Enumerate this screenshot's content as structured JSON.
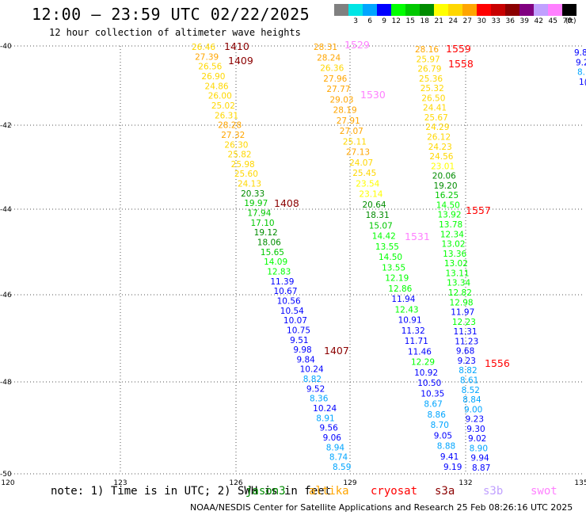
{
  "header": {
    "title": "12:00 — 23:59 UTC 02/22/2025",
    "subtitle": "12 hour collection of altimeter wave heights"
  },
  "color_scale": {
    "unit": "(ft)",
    "swatches": [
      {
        "label": "",
        "color": "#808080"
      },
      {
        "label": "3",
        "color": "#00e5e5"
      },
      {
        "label": "6",
        "color": "#00a5ff"
      },
      {
        "label": "9",
        "color": "#0000ff"
      },
      {
        "label": "12",
        "color": "#00ff00"
      },
      {
        "label": "15",
        "color": "#00c800"
      },
      {
        "label": "18",
        "color": "#008c00"
      },
      {
        "label": "21",
        "color": "#ffff00"
      },
      {
        "label": "24",
        "color": "#ffd700"
      },
      {
        "label": "27",
        "color": "#ffa500"
      },
      {
        "label": "30",
        "color": "#ff0000"
      },
      {
        "label": "33",
        "color": "#c80000"
      },
      {
        "label": "36",
        "color": "#8b0000"
      },
      {
        "label": "39",
        "color": "#800080"
      },
      {
        "label": "42",
        "color": "#c0a0ff"
      },
      {
        "label": "45",
        "color": "#ff80ff"
      },
      {
        "label": "70",
        "color": "#000000"
      }
    ]
  },
  "map": {
    "lat_ticks": [
      "-40",
      "-42",
      "-44",
      "-46",
      "-48",
      "-50"
    ],
    "lon_ticks": [
      "120",
      "123",
      "126",
      "129",
      "132",
      "135"
    ],
    "tracks": [
      {
        "labels": [
          {
            "text": "1410",
            "color": "#8b0000"
          },
          {
            "text": "1409",
            "color": "#8b0000"
          },
          {
            "text": "1408",
            "color": "#8b0000"
          },
          {
            "text": "1407",
            "color": "#8b0000"
          }
        ],
        "points": [
          {
            "text": "26.46",
            "color": "#ffd700"
          },
          {
            "text": "27.39",
            "color": "#ffa500"
          },
          {
            "text": "26.56",
            "color": "#ffd700"
          },
          {
            "text": "26.90",
            "color": "#ffd700"
          },
          {
            "text": "24.86",
            "color": "#ffd700"
          },
          {
            "text": "26.00",
            "color": "#ffd700"
          },
          {
            "text": "25.02",
            "color": "#ffd700"
          },
          {
            "text": "26.31",
            "color": "#ffd700"
          },
          {
            "text": "28.28",
            "color": "#ffa500"
          },
          {
            "text": "27.32",
            "color": "#ffa500"
          },
          {
            "text": "26.30",
            "color": "#ffd700"
          },
          {
            "text": "25.82",
            "color": "#ffd700"
          },
          {
            "text": "25.98",
            "color": "#ffd700"
          },
          {
            "text": "25.60",
            "color": "#ffd700"
          },
          {
            "text": "24.13",
            "color": "#ffd700"
          },
          {
            "text": "20.33",
            "color": "#008c00"
          },
          {
            "text": "19.97",
            "color": "#00c800"
          },
          {
            "text": "17.94",
            "color": "#00c800"
          },
          {
            "text": "17.10",
            "color": "#00c800"
          },
          {
            "text": "19.12",
            "color": "#008c00"
          },
          {
            "text": "18.06",
            "color": "#008c00"
          },
          {
            "text": "15.65",
            "color": "#00c800"
          },
          {
            "text": "14.09",
            "color": "#00ff00"
          },
          {
            "text": "12.83",
            "color": "#00ff00"
          },
          {
            "text": "11.39",
            "color": "#0000ff"
          },
          {
            "text": "10.67",
            "color": "#0000ff"
          },
          {
            "text": "10.56",
            "color": "#0000ff"
          },
          {
            "text": "10.54",
            "color": "#0000ff"
          },
          {
            "text": "10.07",
            "color": "#0000ff"
          },
          {
            "text": "10.75",
            "color": "#0000ff"
          },
          {
            "text": "9.51",
            "color": "#0000ff"
          },
          {
            "text": "9.98",
            "color": "#0000ff"
          },
          {
            "text": "9.84",
            "color": "#0000ff"
          },
          {
            "text": "10.24",
            "color": "#0000ff"
          },
          {
            "text": "8.82",
            "color": "#00a5ff"
          },
          {
            "text": "9.52",
            "color": "#0000ff"
          },
          {
            "text": "8.36",
            "color": "#00a5ff"
          },
          {
            "text": "10.24",
            "color": "#0000ff"
          },
          {
            "text": "8.91",
            "color": "#00a5ff"
          },
          {
            "text": "9.56",
            "color": "#0000ff"
          },
          {
            "text": "9.06",
            "color": "#0000ff"
          },
          {
            "text": "8.94",
            "color": "#00a5ff"
          },
          {
            "text": "8.74",
            "color": "#00a5ff"
          },
          {
            "text": "8.59",
            "color": "#00a5ff"
          }
        ]
      },
      {
        "labels": [
          {
            "text": "1529",
            "color": "#ff80ff"
          },
          {
            "text": "1530",
            "color": "#ff80ff"
          },
          {
            "text": "1531",
            "color": "#ff80ff"
          }
        ],
        "points": [
          {
            "text": "28.31",
            "color": "#ffa500"
          },
          {
            "text": "28.24",
            "color": "#ffa500"
          },
          {
            "text": "26.36",
            "color": "#ffd700"
          },
          {
            "text": "27.96",
            "color": "#ffa500"
          },
          {
            "text": "27.77",
            "color": "#ffa500"
          },
          {
            "text": "29.03",
            "color": "#ffa500"
          },
          {
            "text": "28.19",
            "color": "#ffa500"
          },
          {
            "text": "27.91",
            "color": "#ffa500"
          },
          {
            "text": "27.07",
            "color": "#ffa500"
          },
          {
            "text": "25.11",
            "color": "#ffd700"
          },
          {
            "text": "27.13",
            "color": "#ffa500"
          },
          {
            "text": "24.07",
            "color": "#ffd700"
          },
          {
            "text": "25.45",
            "color": "#ffd700"
          },
          {
            "text": "23.54",
            "color": "#ffff00"
          },
          {
            "text": "23.14",
            "color": "#ffff00"
          },
          {
            "text": "20.64",
            "color": "#008c00"
          },
          {
            "text": "18.31",
            "color": "#008c00"
          },
          {
            "text": "15.07",
            "color": "#00c800"
          },
          {
            "text": "14.42",
            "color": "#00ff00"
          },
          {
            "text": "13.55",
            "color": "#00ff00"
          },
          {
            "text": "14.50",
            "color": "#00ff00"
          },
          {
            "text": "13.55",
            "color": "#00ff00"
          },
          {
            "text": "12.19",
            "color": "#00ff00"
          },
          {
            "text": "12.86",
            "color": "#00ff00"
          },
          {
            "text": "11.94",
            "color": "#0000ff"
          },
          {
            "text": "12.43",
            "color": "#00ff00"
          },
          {
            "text": "10.91",
            "color": "#0000ff"
          },
          {
            "text": "11.32",
            "color": "#0000ff"
          },
          {
            "text": "11.71",
            "color": "#0000ff"
          },
          {
            "text": "11.46",
            "color": "#0000ff"
          },
          {
            "text": "12.29",
            "color": "#00ff00"
          },
          {
            "text": "10.92",
            "color": "#0000ff"
          },
          {
            "text": "10.50",
            "color": "#0000ff"
          },
          {
            "text": "10.35",
            "color": "#0000ff"
          },
          {
            "text": "8.67",
            "color": "#00a5ff"
          },
          {
            "text": "8.86",
            "color": "#00a5ff"
          },
          {
            "text": "8.70",
            "color": "#00a5ff"
          },
          {
            "text": "9.05",
            "color": "#0000ff"
          },
          {
            "text": "8.88",
            "color": "#00a5ff"
          },
          {
            "text": "9.41",
            "color": "#0000ff"
          },
          {
            "text": "9.19",
            "color": "#0000ff"
          }
        ]
      },
      {
        "labels": [
          {
            "text": "1559",
            "color": "#ff0000"
          },
          {
            "text": "1558",
            "color": "#ff0000"
          },
          {
            "text": "1557",
            "color": "#ff0000"
          },
          {
            "text": "1556",
            "color": "#ff0000"
          }
        ],
        "points": [
          {
            "text": "28.16",
            "color": "#ffa500"
          },
          {
            "text": "25.97",
            "color": "#ffd700"
          },
          {
            "text": "26.79",
            "color": "#ffd700"
          },
          {
            "text": "25.36",
            "color": "#ffd700"
          },
          {
            "text": "25.32",
            "color": "#ffd700"
          },
          {
            "text": "26.50",
            "color": "#ffd700"
          },
          {
            "text": "24.41",
            "color": "#ffd700"
          },
          {
            "text": "25.67",
            "color": "#ffd700"
          },
          {
            "text": "24.29",
            "color": "#ffd700"
          },
          {
            "text": "26.12",
            "color": "#ffd700"
          },
          {
            "text": "24.23",
            "color": "#ffd700"
          },
          {
            "text": "24.56",
            "color": "#ffd700"
          },
          {
            "text": "23.01",
            "color": "#ffff00"
          },
          {
            "text": "20.06",
            "color": "#008c00"
          },
          {
            "text": "19.20",
            "color": "#008c00"
          },
          {
            "text": "16.25",
            "color": "#00c800"
          },
          {
            "text": "14.50",
            "color": "#00ff00"
          },
          {
            "text": "13.92",
            "color": "#00ff00"
          },
          {
            "text": "13.78",
            "color": "#00ff00"
          },
          {
            "text": "12.34",
            "color": "#00ff00"
          },
          {
            "text": "13.02",
            "color": "#00ff00"
          },
          {
            "text": "13.36",
            "color": "#00ff00"
          },
          {
            "text": "13.02",
            "color": "#00ff00"
          },
          {
            "text": "13.11",
            "color": "#00ff00"
          },
          {
            "text": "13.34",
            "color": "#00ff00"
          },
          {
            "text": "12.82",
            "color": "#00ff00"
          },
          {
            "text": "12.98",
            "color": "#00ff00"
          },
          {
            "text": "11.97",
            "color": "#0000ff"
          },
          {
            "text": "12.23",
            "color": "#00ff00"
          },
          {
            "text": "11.31",
            "color": "#0000ff"
          },
          {
            "text": "11.23",
            "color": "#0000ff"
          },
          {
            "text": "9.68",
            "color": "#0000ff"
          },
          {
            "text": "9.23",
            "color": "#0000ff"
          },
          {
            "text": "8.82",
            "color": "#00a5ff"
          },
          {
            "text": "8.61",
            "color": "#00a5ff"
          },
          {
            "text": "8.52",
            "color": "#00a5ff"
          },
          {
            "text": "8.84",
            "color": "#00a5ff"
          },
          {
            "text": "9.00",
            "color": "#00a5ff"
          },
          {
            "text": "9.23",
            "color": "#0000ff"
          },
          {
            "text": "9.30",
            "color": "#0000ff"
          },
          {
            "text": "9.02",
            "color": "#0000ff"
          },
          {
            "text": "8.90",
            "color": "#00a5ff"
          },
          {
            "text": "9.94",
            "color": "#0000ff"
          },
          {
            "text": "8.87",
            "color": "#0000ff"
          }
        ]
      },
      {
        "labels": [],
        "points": [
          {
            "text": "9.8",
            "color": "#0000ff"
          },
          {
            "text": "9.2",
            "color": "#0000ff"
          },
          {
            "text": "8.",
            "color": "#00a5ff"
          },
          {
            "text": "1(",
            "color": "#0000ff"
          }
        ]
      }
    ]
  },
  "footer": {
    "note": "note: 1) Time is in UTC; 2) SWH is in feet",
    "satellites": [
      {
        "name": "jason3",
        "color": "#008c00"
      },
      {
        "name": "altika",
        "color": "#ffa500"
      },
      {
        "name": "cryosat",
        "color": "#ff0000"
      },
      {
        "name": "s3a",
        "color": "#8b0000"
      },
      {
        "name": "s3b",
        "color": "#c0a0ff"
      },
      {
        "name": "swot",
        "color": "#ff80ff"
      }
    ],
    "credit": "NOAA/NESDIS Center for Satellite Applications and Research    25 Feb 08:26:16 UTC 2025"
  }
}
